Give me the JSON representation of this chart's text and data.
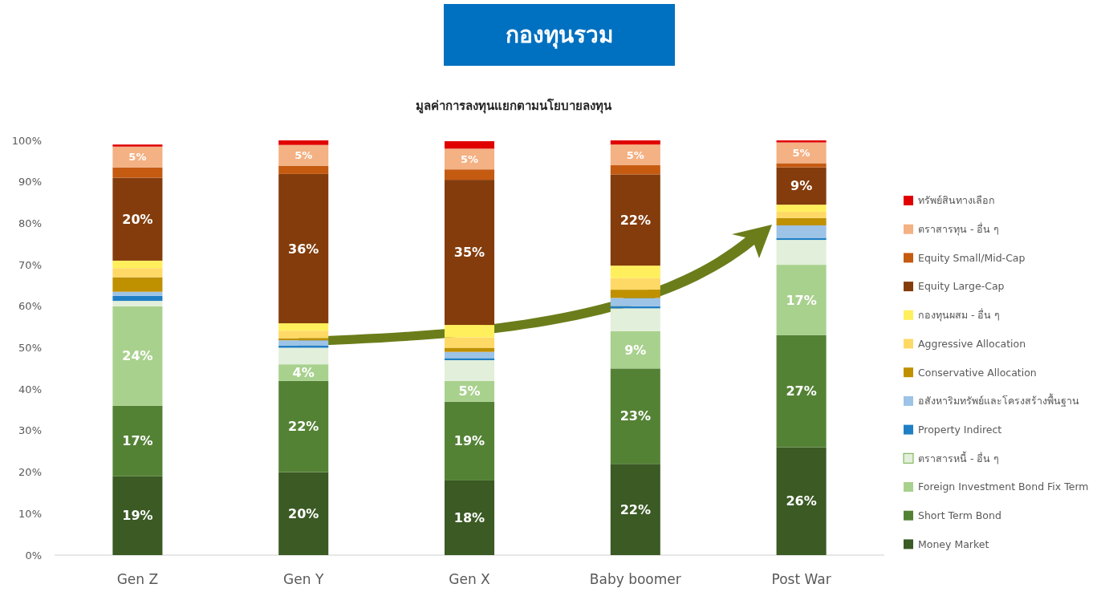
{
  "chart_data": {
    "type": "bar",
    "stacked": true,
    "title": "กองทุนรวม",
    "subtitle": "มูลค่าการลงทุนแยกตามนโยบายลงทุน",
    "categories": [
      "Gen Z",
      "Gen Y",
      "Gen X",
      "Baby boomer",
      "Post War"
    ],
    "ylim": [
      0,
      100
    ],
    "yticks": [
      {
        "value": 0,
        "label": "0%"
      },
      {
        "value": 10,
        "label": "10%"
      },
      {
        "value": 20,
        "label": "20%"
      },
      {
        "value": 30,
        "label": "30%"
      },
      {
        "value": 40,
        "label": "40%"
      },
      {
        "value": 50,
        "label": "50%"
      },
      {
        "value": 60,
        "label": "60%"
      },
      {
        "value": 70,
        "label": "70%"
      },
      {
        "value": 80,
        "label": "80%"
      },
      {
        "value": 90,
        "label": "90%"
      },
      {
        "value": 100,
        "label": "100%"
      }
    ],
    "legend": "right",
    "series": [
      {
        "name": "Money Market",
        "color": "#3b5a24",
        "values": [
          19,
          20,
          18,
          22,
          26
        ],
        "value_labels": [
          "19%",
          "20%",
          "18%",
          "22%",
          "26%"
        ]
      },
      {
        "name": "Short Term Bond",
        "color": "#548235",
        "values": [
          17,
          22,
          19,
          23,
          27
        ],
        "value_labels": [
          "17%",
          "22%",
          "19%",
          "23%",
          "27%"
        ]
      },
      {
        "name": "Foreign Investment Bond Fix Term",
        "color": "#a9d18e",
        "values": [
          24,
          4,
          5,
          9,
          17
        ],
        "value_labels": [
          "24%",
          "4%",
          "5%",
          "9%",
          "17%"
        ]
      },
      {
        "name": "ตราสารหนี้ - อื่น ๆ",
        "color": "#e2efda",
        "values": [
          1.3,
          4,
          5,
          5.5,
          6
        ]
      },
      {
        "name": "Property Indirect",
        "color": "#1f7fc4",
        "values": [
          1.2,
          0.5,
          0.5,
          0.5,
          0.5
        ]
      },
      {
        "name": "อสังหาริมทรัพย์และโครงสร้างพื้นฐาน",
        "color": "#9dc3e6",
        "values": [
          1,
          1.3,
          1.5,
          2,
          3
        ]
      },
      {
        "name": "Conservative Allocation",
        "color": "#bf9000",
        "values": [
          3.5,
          0.5,
          1,
          2,
          1.8
        ]
      },
      {
        "name": "Aggressive Allocation",
        "color": "#ffd966",
        "values": [
          2.2,
          1.8,
          2.5,
          2.8,
          1.5
        ]
      },
      {
        "name": "กองทุนผสม - อื่น ๆ",
        "color": "#ffef5c",
        "values": [
          1.8,
          1.8,
          3,
          3,
          1.7
        ]
      },
      {
        "name": "Equity Large-Cap",
        "color": "#843c0c",
        "values": [
          20,
          36,
          35,
          22,
          9
        ],
        "value_labels": [
          "20%",
          "36%",
          "35%",
          "22%",
          "9%"
        ]
      },
      {
        "name": "Equity Small/Mid-Cap",
        "color": "#c55a11",
        "values": [
          2.5,
          2,
          2.5,
          2.2,
          1
        ]
      },
      {
        "name": "ตราสารทุน - อื่น ๆ",
        "color": "#f4b183",
        "values": [
          5,
          5,
          5,
          5,
          5
        ],
        "value_labels": [
          "5%",
          "5%",
          "5%",
          "5%",
          "5%"
        ]
      },
      {
        "name": "ทรัพย์สินทางเลือก",
        "color": "#e00000",
        "values": [
          0.5,
          1.1,
          1.8,
          1,
          0.5
        ]
      }
    ]
  }
}
